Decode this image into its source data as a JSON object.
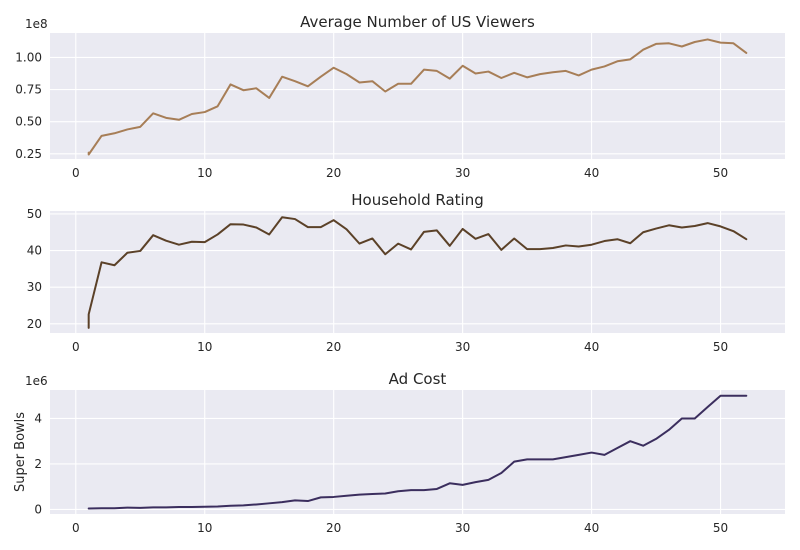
{
  "chart_data": [
    {
      "type": "line",
      "title": "Average Number of US Viewers",
      "xlabel": "",
      "ylabel": "",
      "offset_label": "1e8",
      "xlim": [
        -2,
        55
      ],
      "ylim": [
        0.21,
        1.19
      ],
      "xticks": [
        0,
        10,
        20,
        30,
        40,
        50
      ],
      "yticks": [
        0.25,
        0.5,
        0.75,
        1.0
      ],
      "ytick_labels": [
        "0.25",
        "0.50",
        "0.75",
        "1.00"
      ],
      "grid": true,
      "color": "#a77e57",
      "series": [
        {
          "x": [
            1,
            1,
            2,
            3,
            4,
            5,
            6,
            7,
            8,
            9,
            10,
            11,
            12,
            13,
            14,
            15,
            16,
            17,
            18,
            19,
            20,
            21,
            22,
            23,
            24,
            25,
            26,
            27,
            28,
            29,
            30,
            31,
            32,
            33,
            34,
            35,
            36,
            37,
            38,
            39,
            40,
            41,
            42,
            43,
            44,
            45,
            46,
            47,
            48,
            49,
            50,
            51,
            52
          ],
          "values": [
            0.26,
            0.245,
            0.39,
            0.41,
            0.44,
            0.46,
            0.565,
            0.53,
            0.515,
            0.56,
            0.575,
            0.62,
            0.79,
            0.745,
            0.76,
            0.685,
            0.85,
            0.815,
            0.775,
            0.85,
            0.92,
            0.87,
            0.805,
            0.815,
            0.735,
            0.795,
            0.795,
            0.905,
            0.895,
            0.835,
            0.935,
            0.875,
            0.89,
            0.84,
            0.88,
            0.845,
            0.87,
            0.885,
            0.895,
            0.86,
            0.905,
            0.93,
            0.97,
            0.985,
            1.06,
            1.105,
            1.11,
            1.085,
            1.12,
            1.14,
            1.115,
            1.11,
            1.035
          ]
        }
      ]
    },
    {
      "type": "line",
      "title": "Household Rating",
      "xlabel": "",
      "ylabel": "",
      "offset_label": "",
      "xlim": [
        -2,
        55
      ],
      "ylim": [
        17.5,
        50.8
      ],
      "xticks": [
        0,
        10,
        20,
        30,
        40,
        50
      ],
      "yticks": [
        20,
        30,
        40,
        50
      ],
      "ytick_labels": [
        "20",
        "30",
        "40",
        "50"
      ],
      "grid": true,
      "color": "#5b4128",
      "series": [
        {
          "x": [
            1,
            1,
            2,
            3,
            4,
            5,
            6,
            7,
            8,
            9,
            10,
            11,
            12,
            13,
            14,
            15,
            16,
            17,
            18,
            19,
            20,
            21,
            22,
            23,
            24,
            25,
            26,
            27,
            28,
            29,
            30,
            31,
            32,
            33,
            34,
            35,
            36,
            37,
            38,
            39,
            40,
            41,
            42,
            43,
            44,
            45,
            46,
            47,
            48,
            49,
            50,
            51,
            52
          ],
          "values": [
            18.9,
            22.6,
            36.8,
            36.0,
            39.4,
            39.9,
            44.2,
            42.7,
            41.6,
            42.4,
            42.3,
            44.4,
            47.2,
            47.1,
            46.3,
            44.4,
            49.1,
            48.6,
            46.4,
            46.4,
            48.3,
            45.8,
            41.9,
            43.3,
            39.0,
            41.9,
            40.3,
            45.1,
            45.5,
            41.3,
            45.9,
            43.2,
            44.5,
            40.2,
            43.3,
            40.4,
            40.4,
            40.7,
            41.4,
            41.1,
            41.6,
            42.6,
            43.1,
            42.0,
            45.0,
            46.0,
            46.9,
            46.3,
            46.7,
            47.5,
            46.6,
            45.3,
            43.1
          ]
        }
      ]
    },
    {
      "type": "line",
      "title": "Ad Cost",
      "xlabel": "",
      "ylabel": "Super Bowls",
      "offset_label": "1e6",
      "xlim": [
        -2,
        55
      ],
      "ylim": [
        -0.2,
        5.25
      ],
      "xticks": [
        0,
        10,
        20,
        30,
        40,
        50
      ],
      "yticks": [
        0,
        2,
        4
      ],
      "ytick_labels": [
        "0",
        "2",
        "4"
      ],
      "grid": true,
      "color": "#3b2e5e",
      "series": [
        {
          "x": [
            1,
            2,
            3,
            4,
            5,
            6,
            7,
            8,
            9,
            10,
            11,
            12,
            13,
            14,
            15,
            16,
            17,
            18,
            19,
            20,
            21,
            22,
            23,
            24,
            25,
            26,
            27,
            28,
            29,
            30,
            31,
            32,
            33,
            34,
            35,
            36,
            37,
            38,
            39,
            40,
            41,
            42,
            43,
            44,
            45,
            46,
            47,
            48,
            49,
            50,
            51,
            52
          ],
          "values": [
            0.04,
            0.05,
            0.05,
            0.08,
            0.07,
            0.09,
            0.09,
            0.11,
            0.11,
            0.12,
            0.13,
            0.16,
            0.18,
            0.22,
            0.27,
            0.32,
            0.4,
            0.37,
            0.53,
            0.55,
            0.6,
            0.65,
            0.68,
            0.7,
            0.8,
            0.85,
            0.85,
            0.9,
            1.15,
            1.08,
            1.2,
            1.3,
            1.6,
            2.1,
            2.2,
            2.2,
            2.2,
            2.3,
            2.4,
            2.5,
            2.4,
            2.7,
            3.0,
            2.8,
            3.1,
            3.5,
            4.0,
            4.0,
            4.5,
            5.0,
            5.0,
            5.0
          ]
        }
      ]
    }
  ]
}
